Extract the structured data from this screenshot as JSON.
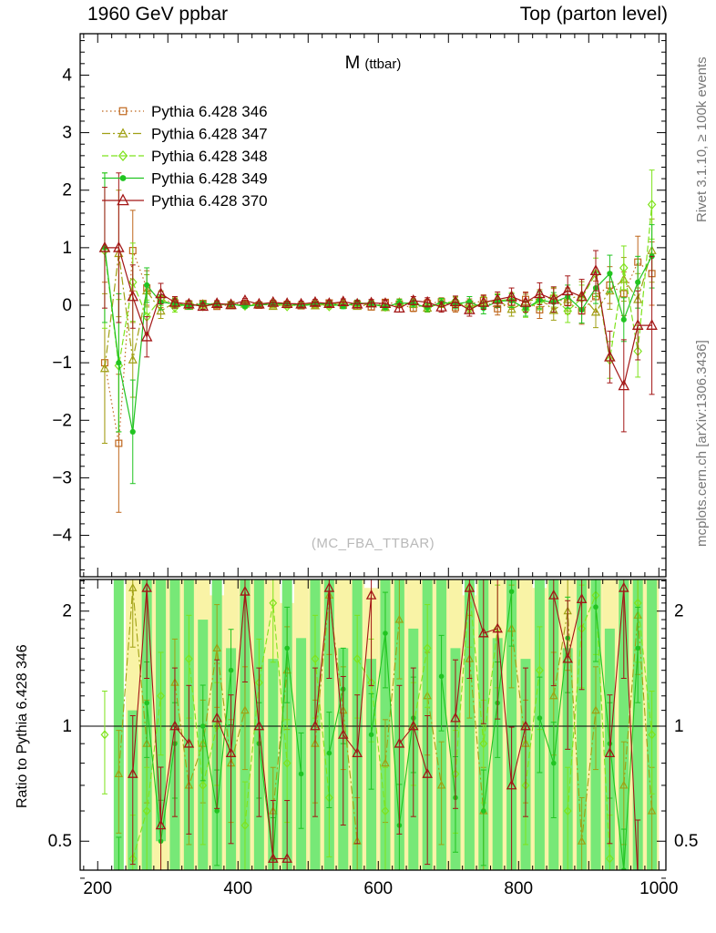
{
  "header": {
    "left": "1960 GeV ppbar",
    "right": "Top (parton level)"
  },
  "plot": {
    "title_main": "M",
    "title_sub": "(ttbar)",
    "watermark": "(MC_FBA_TTBAR)",
    "right_label_top": "Rivet 3.1.10, ≥ 100k events",
    "right_label_bottom": "mcplots.cern.ch [arXiv:1306.3436]",
    "ratio_ylabel": "Ratio to Pythia 6.428 346"
  },
  "chart_data": {
    "type": "line",
    "xlim": [
      175,
      1010
    ],
    "xticks": [
      200,
      400,
      600,
      800,
      1000
    ],
    "main": {
      "ylim": [
        -4.72,
        4.72
      ],
      "yticks": [
        -4,
        -3,
        -2,
        -1,
        0,
        1,
        2,
        3,
        4
      ]
    },
    "ratio": {
      "ylim": [
        0.42,
        2.42
      ],
      "scale": "log",
      "yticks": [
        0.5,
        1,
        2
      ]
    },
    "band_colors": {
      "yellow": "#f9f3a6",
      "green": "#77e877"
    },
    "x": [
      210,
      230,
      250,
      270,
      290,
      310,
      330,
      350,
      370,
      390,
      410,
      430,
      450,
      470,
      490,
      510,
      530,
      550,
      570,
      590,
      610,
      630,
      650,
      670,
      690,
      710,
      730,
      750,
      770,
      790,
      810,
      830,
      850,
      870,
      890,
      910,
      930,
      950,
      970,
      990
    ],
    "series": [
      {
        "name": "Pythia 6.428 346",
        "color": "#bf671d",
        "dash": "dotted",
        "marker": "square-open",
        "y": [
          -1.0,
          -2.4,
          0.95,
          0.3,
          0.1,
          0.04,
          0.02,
          0.03,
          -0.02,
          0.01,
          0.03,
          0.0,
          0.02,
          0.01,
          -0.01,
          0.02,
          0.04,
          0.0,
          0.02,
          -0.03,
          0.05,
          0.02,
          -0.05,
          0.03,
          0.06,
          -0.04,
          0.02,
          0.08,
          -0.06,
          0.05,
          0.1,
          -0.08,
          0.12,
          0.05,
          -0.1,
          0.15,
          0.35,
          0.2,
          0.75,
          0.55
        ],
        "ey": [
          1.4,
          1.2,
          0.7,
          0.3,
          0.14,
          0.08,
          0.05,
          0.04,
          0.04,
          0.03,
          0.03,
          0.03,
          0.03,
          0.03,
          0.04,
          0.04,
          0.04,
          0.04,
          0.05,
          0.05,
          0.05,
          0.06,
          0.06,
          0.07,
          0.07,
          0.08,
          0.09,
          0.1,
          0.11,
          0.12,
          0.13,
          0.15,
          0.17,
          0.2,
          0.23,
          0.27,
          0.32,
          0.38,
          0.45,
          0.55
        ]
      },
      {
        "name": "Pythia 6.428 347",
        "color": "#a0a014",
        "dash": "dashdot",
        "marker": "triangle-open",
        "y": [
          -1.1,
          0.9,
          -0.95,
          0.25,
          -0.1,
          0.05,
          -0.02,
          0.02,
          0.03,
          -0.01,
          0.02,
          0.03,
          -0.02,
          0.02,
          0.03,
          -0.01,
          0.02,
          0.04,
          -0.02,
          0.03,
          -0.04,
          0.05,
          0.02,
          -0.05,
          0.04,
          0.06,
          -0.03,
          0.05,
          0.09,
          -0.07,
          0.06,
          0.12,
          -0.09,
          0.1,
          0.18,
          -0.12,
          0.25,
          0.45,
          0.1,
          0.95
        ],
        "ey": [
          1.3,
          1.1,
          0.65,
          0.28,
          0.13,
          0.08,
          0.05,
          0.04,
          0.04,
          0.03,
          0.03,
          0.03,
          0.03,
          0.03,
          0.04,
          0.04,
          0.04,
          0.04,
          0.05,
          0.05,
          0.05,
          0.06,
          0.06,
          0.07,
          0.07,
          0.08,
          0.09,
          0.1,
          0.11,
          0.12,
          0.13,
          0.15,
          0.17,
          0.2,
          0.23,
          0.27,
          0.32,
          0.38,
          0.45,
          0.55
        ]
      },
      {
        "name": "Pythia 6.428 348",
        "color": "#7ee31c",
        "dash": "dashed",
        "marker": "diamond-open",
        "y": [
          0.95,
          -1.05,
          0.4,
          -0.2,
          0.12,
          -0.04,
          0.03,
          -0.02,
          0.02,
          0.02,
          -0.01,
          0.02,
          0.03,
          -0.02,
          0.01,
          0.03,
          -0.02,
          0.02,
          0.03,
          0.04,
          -0.03,
          0.02,
          0.05,
          -0.04,
          0.03,
          0.07,
          -0.05,
          0.04,
          0.08,
          0.1,
          -0.08,
          0.07,
          0.14,
          -0.1,
          0.12,
          0.55,
          -0.95,
          0.65,
          -0.8,
          1.75
        ],
        "ey": [
          1.35,
          1.15,
          0.68,
          0.29,
          0.13,
          0.08,
          0.05,
          0.04,
          0.04,
          0.03,
          0.03,
          0.03,
          0.03,
          0.03,
          0.04,
          0.04,
          0.04,
          0.04,
          0.05,
          0.05,
          0.05,
          0.06,
          0.06,
          0.07,
          0.07,
          0.08,
          0.09,
          0.1,
          0.11,
          0.12,
          0.13,
          0.15,
          0.17,
          0.2,
          0.23,
          0.27,
          0.32,
          0.38,
          0.45,
          0.6
        ]
      },
      {
        "name": "Pythia 6.428 349",
        "color": "#21c421",
        "dash": "solid",
        "marker": "circle-filled",
        "y": [
          1.0,
          -1.0,
          -2.2,
          0.35,
          0.05,
          0.03,
          -0.02,
          0.03,
          0.01,
          0.02,
          -0.02,
          0.01,
          0.02,
          0.03,
          -0.01,
          0.02,
          0.03,
          -0.02,
          0.04,
          0.02,
          -0.03,
          0.04,
          0.03,
          -0.04,
          0.05,
          0.02,
          0.06,
          -0.05,
          0.07,
          0.08,
          -0.06,
          0.09,
          0.05,
          0.15,
          -0.08,
          0.3,
          0.55,
          -0.25,
          0.4,
          0.85
        ],
        "ey": [
          1.3,
          1.2,
          0.9,
          0.3,
          0.13,
          0.08,
          0.05,
          0.04,
          0.04,
          0.03,
          0.03,
          0.03,
          0.03,
          0.03,
          0.04,
          0.04,
          0.04,
          0.04,
          0.05,
          0.05,
          0.05,
          0.06,
          0.06,
          0.07,
          0.07,
          0.08,
          0.09,
          0.1,
          0.11,
          0.12,
          0.13,
          0.15,
          0.17,
          0.2,
          0.23,
          0.27,
          0.32,
          0.38,
          0.45,
          0.55
        ]
      },
      {
        "name": "Pythia 6.428 370",
        "color": "#a31616",
        "dash": "solid",
        "marker": "triangle-open-big",
        "y": [
          1.0,
          1.0,
          0.15,
          -0.55,
          0.2,
          0.05,
          0.02,
          -0.02,
          0.03,
          0.01,
          0.08,
          0.02,
          0.05,
          0.03,
          0.02,
          0.05,
          0.03,
          0.06,
          0.02,
          0.04,
          0.03,
          -0.05,
          0.08,
          0.05,
          -0.03,
          0.06,
          -0.08,
          0.05,
          0.1,
          0.15,
          0.05,
          0.2,
          0.1,
          0.25,
          0.15,
          0.6,
          -0.9,
          -1.4,
          -0.35,
          -0.35
        ],
        "ey": [
          1.05,
          1.3,
          0.55,
          0.35,
          0.18,
          0.1,
          0.06,
          0.05,
          0.05,
          0.04,
          0.04,
          0.04,
          0.04,
          0.04,
          0.05,
          0.05,
          0.05,
          0.05,
          0.06,
          0.06,
          0.06,
          0.07,
          0.07,
          0.08,
          0.09,
          0.1,
          0.11,
          0.12,
          0.13,
          0.15,
          0.17,
          0.19,
          0.22,
          0.26,
          0.3,
          0.35,
          0.45,
          0.8,
          0.6,
          1.2
        ]
      }
    ],
    "ratio_reference": "Pythia 6.428 346",
    "ratio_series": [
      {
        "name": "Pythia 6.428 347",
        "color": "#a0a014",
        "dash": "dashdot",
        "marker": "triangle-open",
        "eyfrac": 0.3,
        "y": [
          null,
          0.75,
          2.3,
          0.9,
          null,
          1.3,
          0.7,
          0.9,
          1.6,
          0.8,
          1.1,
          null,
          0.6,
          1.4,
          null,
          0.9,
          2.2,
          1.1,
          0.5,
          null,
          0.8,
          1.9,
          null,
          1.2,
          0.7,
          null,
          1.5,
          0.6,
          null,
          1.8,
          0.9,
          null,
          1.2,
          2.0,
          0.5,
          1.1,
          null,
          0.7,
          1.95,
          0.6
        ]
      },
      {
        "name": "Pythia 6.428 348",
        "color": "#7ee31c",
        "dash": "dashed",
        "marker": "diamond-open",
        "eyfrac": 0.3,
        "y": [
          0.95,
          null,
          0.45,
          0.6,
          1.2,
          null,
          1.5,
          0.7,
          1.0,
          null,
          0.55,
          1.3,
          2.1,
          0.8,
          null,
          1.5,
          0.65,
          null,
          1.5,
          1.3,
          0.6,
          null,
          1.0,
          1.6,
          null,
          0.75,
          2.3,
          0.9,
          1.8,
          null,
          0.7,
          1.4,
          null,
          0.6,
          1.8,
          2.2,
          0.45,
          null,
          2.1,
          0.95
        ]
      },
      {
        "name": "Pythia 6.428 349",
        "color": "#21c421",
        "dash": "solid",
        "marker": "circle-filled",
        "eyfrac": 0.28,
        "y": [
          null,
          0.4,
          null,
          1.15,
          0.5,
          0.9,
          null,
          1.0,
          0.6,
          1.4,
          null,
          0.9,
          0.45,
          1.6,
          0.75,
          null,
          0.85,
          1.25,
          null,
          0.95,
          1.75,
          0.55,
          1.05,
          null,
          1.35,
          0.65,
          null,
          0.6,
          1.15,
          2.25,
          null,
          1.05,
          0.8,
          1.7,
          null,
          2.05,
          0.9,
          0.42,
          1.6,
          null
        ]
      },
      {
        "name": "Pythia 6.428 370",
        "color": "#a31616",
        "dash": "solid",
        "marker": "triangle-open-big",
        "eyfrac": 0.42,
        "y": [
          null,
          null,
          0.75,
          2.3,
          0.55,
          1.0,
          0.9,
          null,
          1.05,
          0.85,
          2.25,
          1.0,
          0.45,
          0.45,
          null,
          1.0,
          2.3,
          0.95,
          0.85,
          2.2,
          null,
          0.9,
          1.0,
          0.75,
          null,
          1.05,
          2.3,
          1.75,
          1.8,
          0.7,
          1.0,
          null,
          2.2,
          1.5,
          2.15,
          null,
          0.85,
          2.3,
          0.4,
          null
        ]
      }
    ],
    "ratio_bands": {
      "yellow": [
        null,
        null,
        [
          0.38,
          2.5
        ],
        [
          0.38,
          2.5
        ],
        [
          0.38,
          2.5
        ],
        [
          0.38,
          2.5
        ],
        [
          0.38,
          2.5
        ],
        [
          0.38,
          2.5
        ],
        [
          0.38,
          2.2
        ],
        [
          0.38,
          2.5
        ],
        [
          0.38,
          2.5
        ],
        [
          0.38,
          2.5
        ],
        [
          0.38,
          2.5
        ],
        [
          0.38,
          2.1
        ],
        [
          0.38,
          2.5
        ],
        [
          0.38,
          2.5
        ],
        [
          0.38,
          2.5
        ],
        [
          0.38,
          2.5
        ],
        [
          0.38,
          2.5
        ],
        [
          0.38,
          2.3
        ],
        [
          0.38,
          2.5
        ],
        [
          0.38,
          2.5
        ],
        [
          0.38,
          2.5
        ],
        [
          0.38,
          2.5
        ],
        [
          0.38,
          2.5
        ],
        [
          0.38,
          2.5
        ],
        [
          0.38,
          2.2
        ],
        [
          0.38,
          2.5
        ],
        [
          0.38,
          2.5
        ],
        [
          0.38,
          2.5
        ],
        [
          0.38,
          2.5
        ],
        [
          0.38,
          2.3
        ],
        [
          0.38,
          2.5
        ],
        [
          0.38,
          2.5
        ],
        [
          0.38,
          2.5
        ],
        [
          0.38,
          2.5
        ],
        [
          0.38,
          2.5
        ],
        [
          0.38,
          2.5
        ],
        [
          0.38,
          2.5
        ],
        [
          0.38,
          2.5
        ]
      ],
      "green": [
        null,
        [
          0.38,
          2.5
        ],
        [
          0.38,
          1.1
        ],
        [
          0.38,
          2.5
        ],
        [
          0.5,
          2.5
        ],
        [
          0.38,
          2.5
        ],
        [
          0.38,
          2.5
        ],
        [
          0.38,
          1.9
        ],
        [
          0.38,
          2.5
        ],
        [
          0.38,
          1.6
        ],
        [
          0.38,
          2.5
        ],
        [
          0.38,
          2.5
        ],
        [
          0.38,
          1.5
        ],
        [
          0.38,
          2.5
        ],
        [
          0.38,
          1.7
        ],
        [
          0.38,
          2.5
        ],
        [
          0.38,
          2.5
        ],
        [
          0.38,
          1.6
        ],
        [
          0.38,
          2.5
        ],
        [
          0.38,
          1.5
        ],
        [
          0.38,
          2.5
        ],
        [
          0.38,
          2.5
        ],
        [
          0.38,
          1.8
        ],
        [
          0.38,
          2.5
        ],
        [
          0.38,
          2.5
        ],
        [
          0.38,
          1.6
        ],
        [
          0.38,
          2.5
        ],
        [
          0.38,
          2.5
        ],
        [
          0.38,
          1.7
        ],
        [
          0.38,
          2.5
        ],
        [
          0.38,
          1.5
        ],
        [
          0.38,
          2.5
        ],
        [
          0.38,
          2.5
        ],
        [
          0.38,
          1.6
        ],
        [
          0.38,
          2.5
        ],
        [
          0.38,
          2.5
        ],
        [
          0.38,
          1.8
        ],
        [
          0.38,
          2.5
        ],
        [
          0.38,
          2.5
        ],
        [
          0.38,
          2.5
        ]
      ]
    }
  }
}
